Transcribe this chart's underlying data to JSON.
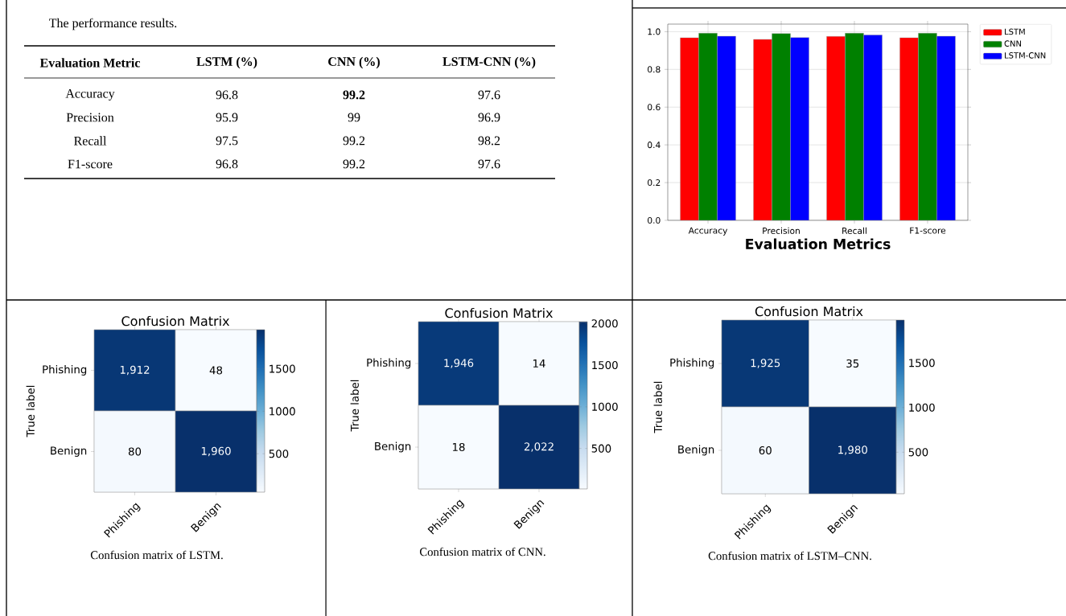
{
  "chart_data": [
    {
      "type": "other",
      "title": "The performance results.",
      "xlabel": "Evaluation Metric",
      "categories": [
        "Accuracy",
        "Precision",
        "Recall",
        "F1-score"
      ],
      "series": [
        {
          "name": "LSTM (%)",
          "values": [
            96.8,
            95.9,
            97.5,
            96.8
          ],
          "value_labels": [
            "96.8",
            "95.9",
            "97.5",
            "96.8"
          ]
        },
        {
          "name": "CNN (%)",
          "values": [
            99.2,
            99,
            99.2,
            99.2
          ],
          "value_labels": [
            "**99.2**",
            "99",
            "99.2",
            "99.2"
          ]
        },
        {
          "name": "LSTM-CNN (%)",
          "values": [
            97.6,
            96.9,
            98.2,
            97.6
          ],
          "value_labels": [
            "97.6",
            "96.9",
            "98.2",
            "97.6"
          ]
        }
      ]
    },
    {
      "type": "bar",
      "xlabel": "Evaluation Metrics",
      "categories": [
        "Accuracy",
        "Precision",
        "Recall",
        "F1-score"
      ],
      "series": [
        {
          "name": "LSTM",
          "color": "#ff0000",
          "values": [
            0.968,
            0.959,
            0.975,
            0.968
          ]
        },
        {
          "name": "CNN",
          "color": "#008000",
          "values": [
            0.992,
            0.99,
            0.992,
            0.992
          ]
        },
        {
          "name": "LSTM-CNN",
          "color": "#0000ff",
          "values": [
            0.976,
            0.969,
            0.982,
            0.976
          ]
        }
      ],
      "ylim": [
        0,
        1.04
      ],
      "yticks": [
        {
          "value": 0,
          "label": "0.0"
        },
        0.2,
        0.4,
        0.6,
        0.8,
        {
          "value": 1,
          "label": "1.0"
        }
      ],
      "grid": true,
      "legend": "right"
    },
    {
      "type": "heatmap",
      "title": "Confusion Matrix",
      "ylabel": "True label",
      "categories": [
        "Phishing",
        "Benign"
      ],
      "y_categories": [
        "Phishing",
        "Benign"
      ],
      "cells": [
        [
          1912,
          48
        ],
        [
          80,
          1960
        ]
      ],
      "cell_labels": [
        [
          "1,912",
          "48"
        ],
        [
          "80",
          "1,960"
        ]
      ],
      "clim": [
        48,
        1960
      ],
      "cticks": [
        500,
        1000,
        1500
      ],
      "annotations": [
        "Confusion matrix of LSTM."
      ]
    },
    {
      "type": "heatmap",
      "title": "Confusion Matrix",
      "ylabel": "True label",
      "categories": [
        "Phishing",
        "Benign"
      ],
      "y_categories": [
        "Phishing",
        "Benign"
      ],
      "cells": [
        [
          1946,
          14
        ],
        [
          18,
          2022
        ]
      ],
      "cell_labels": [
        [
          "1,946",
          "14"
        ],
        [
          "18",
          "2,022"
        ]
      ],
      "clim": [
        14,
        2022
      ],
      "cticks": [
        500,
        1000,
        1500,
        2000
      ],
      "annotations": [
        "Confusion matrix of CNN."
      ]
    },
    {
      "type": "heatmap",
      "title": "Confusion Matrix",
      "ylabel": "True label",
      "categories": [
        "Phishing",
        "Benign"
      ],
      "y_categories": [
        "Phishing",
        "Benign"
      ],
      "cells": [
        [
          1925,
          35
        ],
        [
          60,
          1980
        ]
      ],
      "cell_labels": [
        [
          "1,925",
          "35"
        ],
        [
          "60",
          "1,980"
        ]
      ],
      "clim": [
        35,
        1980
      ],
      "cticks": [
        500,
        1000,
        1500
      ],
      "annotations": [
        "Confusion matrix of LSTM–CNN."
      ]
    }
  ]
}
